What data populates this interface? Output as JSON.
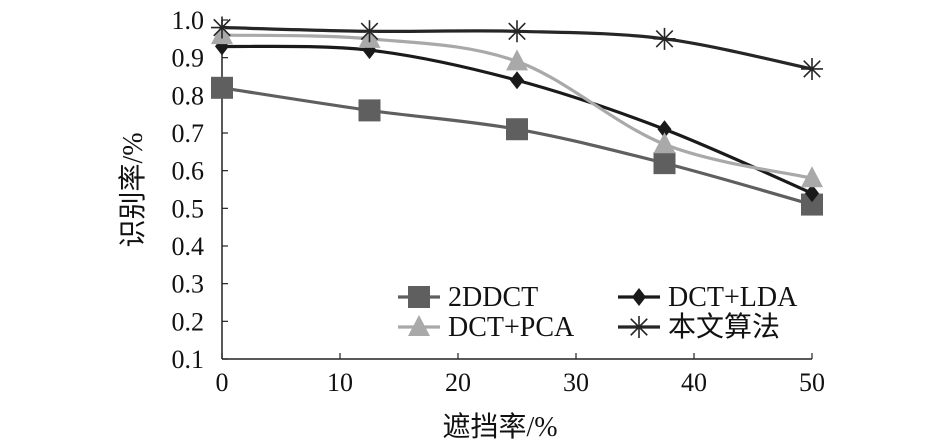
{
  "chart_data": {
    "type": "line",
    "title": "",
    "xlabel": "遮挡率/%",
    "ylabel": "识别率/%",
    "xlim": [
      0,
      50
    ],
    "ylim": [
      0.1,
      1.0
    ],
    "x_ticks": [
      0,
      10,
      20,
      30,
      40,
      50
    ],
    "y_ticks": [
      0.1,
      0.2,
      0.3,
      0.4,
      0.5,
      0.6,
      0.7,
      0.8,
      0.9,
      1.0
    ],
    "x_tick_labels": [
      "0",
      "10",
      "20",
      "30",
      "40",
      "50"
    ],
    "y_tick_labels": [
      "0.1",
      "0.2",
      "0.3",
      "0.4",
      "0.5",
      "0.6",
      "0.7",
      "0.8",
      "0.9",
      "1.0"
    ],
    "grid": false,
    "legend_position": "bottom-right",
    "series": [
      {
        "name": "2DDCT",
        "marker": "square",
        "color": "#5f5f5f",
        "x": [
          0,
          12.5,
          25,
          37.5,
          50
        ],
        "y": [
          0.82,
          0.76,
          0.71,
          0.62,
          0.51
        ]
      },
      {
        "name": "DCT+LDA",
        "marker": "diamond",
        "color": "#1a1a1a",
        "x": [
          0,
          12.5,
          25,
          37.5,
          50
        ],
        "y": [
          0.93,
          0.92,
          0.84,
          0.71,
          0.54
        ]
      },
      {
        "name": "DCT+PCA",
        "marker": "triangle",
        "color": "#a9a9a9",
        "x": [
          0,
          12.5,
          25,
          37.5,
          50
        ],
        "y": [
          0.96,
          0.95,
          0.89,
          0.67,
          0.58
        ]
      },
      {
        "name": "本文算法",
        "marker": "asterisk",
        "color": "#262626",
        "x": [
          0,
          12.5,
          25,
          37.5,
          50
        ],
        "y": [
          0.98,
          0.97,
          0.97,
          0.95,
          0.87
        ]
      }
    ]
  }
}
